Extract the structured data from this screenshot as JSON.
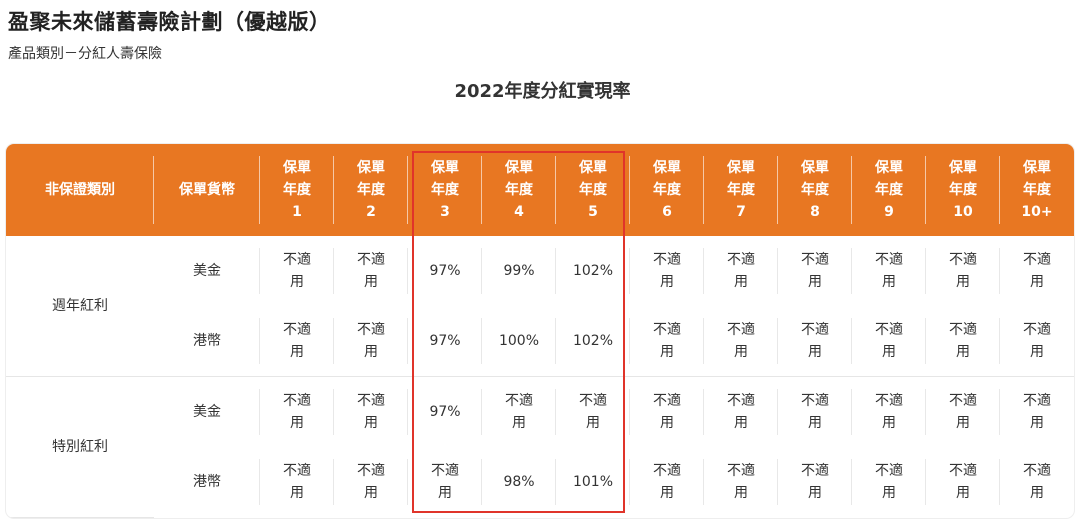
{
  "product": {
    "title": "盈聚未來儲蓄壽險計劃（優越版）",
    "category": "產品類別－分紅人壽保險"
  },
  "table": {
    "title": "2022年度分紅實現率",
    "header_color": "#e87722",
    "highlight_color": "#e0342a",
    "headers": {
      "category": "非保證類別",
      "currency": "保單貨幣",
      "years": [
        [
          "保單",
          "年度",
          "1"
        ],
        [
          "保單",
          "年度",
          "2"
        ],
        [
          "保單",
          "年度",
          "3"
        ],
        [
          "保單",
          "年度",
          "4"
        ],
        [
          "保單",
          "年度",
          "5"
        ],
        [
          "保單",
          "年度",
          "6"
        ],
        [
          "保單",
          "年度",
          "7"
        ],
        [
          "保單",
          "年度",
          "8"
        ],
        [
          "保單",
          "年度",
          "9"
        ],
        [
          "保單",
          "年度",
          "10"
        ],
        [
          "保單",
          "年度",
          "10+"
        ]
      ]
    },
    "groups": [
      {
        "category": "週年紅利",
        "rows": [
          {
            "currency": "美金",
            "cells": [
              [
                "不適",
                "用"
              ],
              [
                "不適",
                "用"
              ],
              [
                "97%"
              ],
              [
                "99%"
              ],
              [
                "102%"
              ],
              [
                "不適",
                "用"
              ],
              [
                "不適",
                "用"
              ],
              [
                "不適",
                "用"
              ],
              [
                "不適",
                "用"
              ],
              [
                "不適",
                "用"
              ],
              [
                "不適",
                "用"
              ]
            ]
          },
          {
            "currency": "港幣",
            "cells": [
              [
                "不適",
                "用"
              ],
              [
                "不適",
                "用"
              ],
              [
                "97%"
              ],
              [
                "100%"
              ],
              [
                "102%"
              ],
              [
                "不適",
                "用"
              ],
              [
                "不適",
                "用"
              ],
              [
                "不適",
                "用"
              ],
              [
                "不適",
                "用"
              ],
              [
                "不適",
                "用"
              ],
              [
                "不適",
                "用"
              ]
            ]
          }
        ]
      },
      {
        "category": "特別紅利",
        "rows": [
          {
            "currency": "美金",
            "cells": [
              [
                "不適",
                "用"
              ],
              [
                "不適",
                "用"
              ],
              [
                "97%"
              ],
              [
                "不適",
                "用"
              ],
              [
                "不適",
                "用"
              ],
              [
                "不適",
                "用"
              ],
              [
                "不適",
                "用"
              ],
              [
                "不適",
                "用"
              ],
              [
                "不適",
                "用"
              ],
              [
                "不適",
                "用"
              ],
              [
                "不適",
                "用"
              ]
            ]
          },
          {
            "currency": "港幣",
            "cells": [
              [
                "不適",
                "用"
              ],
              [
                "不適",
                "用"
              ],
              [
                "不適",
                "用"
              ],
              [
                "98%"
              ],
              [
                "101%"
              ],
              [
                "不適",
                "用"
              ],
              [
                "不適",
                "用"
              ],
              [
                "不適",
                "用"
              ],
              [
                "不適",
                "用"
              ],
              [
                "不適",
                "用"
              ],
              [
                "不適",
                "用"
              ]
            ]
          }
        ]
      }
    ]
  }
}
